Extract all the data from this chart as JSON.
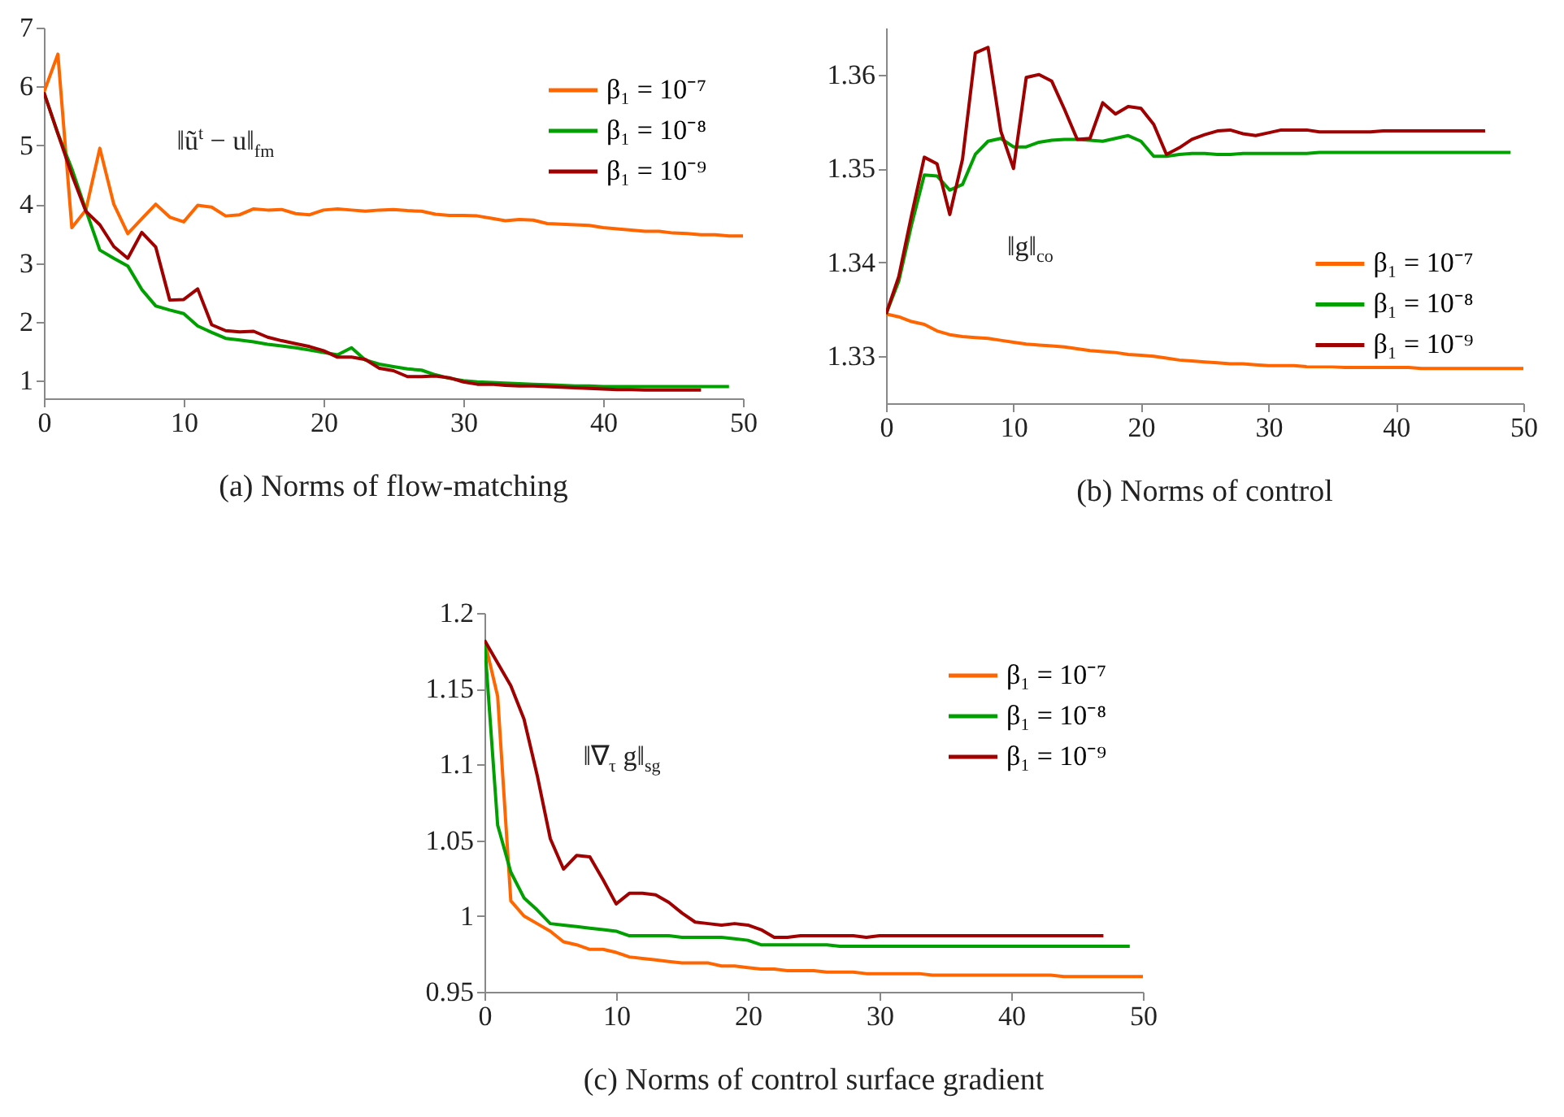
{
  "chart_data": [
    {
      "type": "line",
      "title": "(a) Norms of flow-matching",
      "annotations": [
        "‖ũ$^{t}$ − u‖$_{fm}$"
      ],
      "legend": "top right",
      "xlim": [
        0,
        50
      ],
      "xticks": [
        0,
        10,
        20,
        30,
        40,
        50
      ],
      "ylim": [
        0.7,
        7
      ],
      "yticks": [
        1,
        2,
        3,
        4,
        5,
        6,
        7
      ],
      "x": [
        0,
        1,
        2,
        3,
        4,
        5,
        6,
        7,
        8,
        9,
        10,
        11,
        12,
        13,
        14,
        15,
        16,
        17,
        18,
        19,
        20,
        21,
        22,
        23,
        24,
        25,
        26,
        27,
        28,
        29,
        30,
        31,
        32,
        33,
        34,
        35,
        36,
        37,
        38,
        39,
        40,
        41,
        42,
        43,
        44,
        45,
        46,
        47,
        48,
        49,
        50
      ],
      "series": [
        {
          "name": "β₁ = 10⁻⁷",
          "color": "#ff6600",
          "values": [
            5.9,
            6.55,
            3.6,
            3.9,
            4.95,
            4.0,
            3.5,
            3.75,
            4.0,
            3.78,
            3.7,
            3.98,
            3.95,
            3.8,
            3.82,
            3.92,
            3.9,
            3.91,
            3.84,
            3.82,
            3.9,
            3.92,
            3.9,
            3.88,
            3.9,
            3.91,
            3.89,
            3.88,
            3.83,
            3.81,
            3.81,
            3.8,
            3.76,
            3.72,
            3.74,
            3.73,
            3.67,
            3.66,
            3.65,
            3.64,
            3.6,
            3.58,
            3.56,
            3.54,
            3.54,
            3.51,
            3.5,
            3.48,
            3.48,
            3.46,
            3.46
          ]
        },
        {
          "name": "β₁ = 10⁻⁸",
          "color": "#00a000",
          "values": [
            5.9,
            5.2,
            4.6,
            3.9,
            3.22,
            3.08,
            2.95,
            2.55,
            2.27,
            2.2,
            2.14,
            1.93,
            1.82,
            1.72,
            1.69,
            1.66,
            1.62,
            1.59,
            1.56,
            1.52,
            1.48,
            1.44,
            1.56,
            1.35,
            1.28,
            1.24,
            1.2,
            1.18,
            1.1,
            1.04,
            1.0,
            0.98,
            0.97,
            0.96,
            0.95,
            0.94,
            0.93,
            0.92,
            0.91,
            0.91,
            0.9,
            0.9,
            0.9,
            0.9,
            0.9,
            0.9,
            0.9,
            0.9,
            0.9,
            0.9,
            null
          ]
        },
        {
          "name": "β₁ = 10⁻⁹",
          "color": "#a00000",
          "values": [
            5.9,
            5.2,
            4.5,
            3.88,
            3.65,
            3.28,
            3.08,
            3.52,
            3.27,
            2.37,
            2.38,
            2.56,
            1.95,
            1.85,
            1.83,
            1.84,
            1.74,
            1.68,
            1.63,
            1.58,
            1.51,
            1.4,
            1.4,
            1.36,
            1.21,
            1.17,
            1.07,
            1.07,
            1.08,
            1.05,
            0.98,
            0.94,
            0.94,
            0.92,
            0.91,
            0.91,
            0.9,
            0.89,
            0.88,
            0.87,
            0.86,
            0.85,
            0.85,
            0.84,
            0.84,
            0.84,
            0.84,
            0.84,
            null,
            null,
            null
          ]
        }
      ]
    },
    {
      "type": "line",
      "title": "(b) Norms of control",
      "annotations": [
        "‖g‖$_{co}$"
      ],
      "legend": "right",
      "xlim": [
        0,
        50
      ],
      "xticks": [
        0,
        10,
        20,
        30,
        40,
        50
      ],
      "ylim": [
        1.325,
        1.365
      ],
      "yticks": [
        1.33,
        1.34,
        1.35,
        1.36
      ],
      "x": [
        0,
        1,
        2,
        3,
        4,
        5,
        6,
        7,
        8,
        9,
        10,
        11,
        12,
        13,
        14,
        15,
        16,
        17,
        18,
        19,
        20,
        21,
        22,
        23,
        24,
        25,
        26,
        27,
        28,
        29,
        30,
        31,
        32,
        33,
        34,
        35,
        36,
        37,
        38,
        39,
        40,
        41,
        42,
        43,
        44,
        45,
        46,
        47,
        48,
        49,
        50
      ],
      "series": [
        {
          "name": "β₁ = 10⁻⁷",
          "color": "#ff6600",
          "values": [
            1.3345,
            1.3342,
            1.3337,
            1.3334,
            1.3327,
            1.3323,
            1.3321,
            1.332,
            1.3319,
            1.3317,
            1.3315,
            1.3313,
            1.3312,
            1.3311,
            1.331,
            1.3308,
            1.3306,
            1.3305,
            1.3304,
            1.3302,
            1.3301,
            1.33,
            1.3298,
            1.3296,
            1.3295,
            1.3294,
            1.3293,
            1.3292,
            1.3292,
            1.3291,
            1.329,
            1.329,
            1.329,
            1.3289,
            1.3289,
            1.3289,
            1.3288,
            1.3288,
            1.3288,
            1.3288,
            1.3288,
            1.3288,
            1.3287,
            1.3287,
            1.3287,
            1.3287,
            1.3287,
            1.3287,
            1.3287,
            1.3287,
            1.3287
          ]
        },
        {
          "name": "β₁ = 10⁻⁸",
          "color": "#00a000",
          "values": [
            1.3345,
            1.338,
            1.344,
            1.3493,
            1.3492,
            1.3477,
            1.3483,
            1.3515,
            1.3529,
            1.3532,
            1.3523,
            1.3523,
            1.3528,
            1.353,
            1.3531,
            1.3531,
            1.353,
            1.3529,
            1.3532,
            1.3535,
            1.3529,
            1.3513,
            1.3513,
            1.3515,
            1.3516,
            1.3516,
            1.3515,
            1.3515,
            1.3516,
            1.3516,
            1.3516,
            1.3516,
            1.3516,
            1.3516,
            1.3517,
            1.3517,
            1.3517,
            1.3517,
            1.3517,
            1.3517,
            1.3517,
            1.3517,
            1.3517,
            1.3517,
            1.3517,
            1.3517,
            1.3517,
            1.3517,
            1.3517,
            1.3517,
            null
          ]
        },
        {
          "name": "β₁ = 10⁻⁹",
          "color": "#a00000",
          "values": [
            1.3345,
            1.3385,
            1.345,
            1.3512,
            1.3505,
            1.3451,
            1.351,
            1.3623,
            1.3629,
            1.354,
            1.35,
            1.3597,
            1.36,
            1.3593,
            1.3563,
            1.3531,
            1.3532,
            1.357,
            1.3558,
            1.3566,
            1.3564,
            1.3547,
            1.3515,
            1.3522,
            1.3531,
            1.3536,
            1.354,
            1.3541,
            1.3537,
            1.3535,
            1.3538,
            1.3541,
            1.3541,
            1.3541,
            1.3539,
            1.3539,
            1.3539,
            1.3539,
            1.3539,
            1.354,
            1.354,
            1.354,
            1.354,
            1.354,
            1.354,
            1.354,
            1.354,
            1.354,
            null,
            null,
            null
          ]
        }
      ]
    },
    {
      "type": "line",
      "title": "(c) Norms of control surface gradient",
      "annotations": [
        "‖∇$_{τ}$ g‖$_{sg}$"
      ],
      "legend": "top right",
      "xlim": [
        0,
        50
      ],
      "xticks": [
        0,
        10,
        20,
        30,
        40,
        50
      ],
      "ylim": [
        0.95,
        1.2
      ],
      "yticks": [
        0.95,
        1,
        1.05,
        1.1,
        1.15,
        1.2
      ],
      "x": [
        0,
        1,
        2,
        3,
        4,
        5,
        6,
        7,
        8,
        9,
        10,
        11,
        12,
        13,
        14,
        15,
        16,
        17,
        18,
        19,
        20,
        21,
        22,
        23,
        24,
        25,
        26,
        27,
        28,
        29,
        30,
        31,
        32,
        33,
        34,
        35,
        36,
        37,
        38,
        39,
        40,
        41,
        42,
        43,
        44,
        45,
        46,
        47,
        48,
        49,
        50
      ],
      "series": [
        {
          "name": "β₁ = 10⁻⁷",
          "color": "#ff6600",
          "values": [
            1.182,
            1.145,
            1.01,
            1.0,
            0.995,
            0.99,
            0.983,
            0.981,
            0.978,
            0.978,
            0.976,
            0.973,
            0.972,
            0.971,
            0.97,
            0.969,
            0.969,
            0.969,
            0.967,
            0.967,
            0.966,
            0.965,
            0.965,
            0.964,
            0.964,
            0.964,
            0.963,
            0.963,
            0.963,
            0.962,
            0.962,
            0.962,
            0.962,
            0.962,
            0.961,
            0.961,
            0.961,
            0.961,
            0.961,
            0.961,
            0.961,
            0.961,
            0.961,
            0.961,
            0.96,
            0.96,
            0.96,
            0.96,
            0.96,
            0.96,
            0.96
          ]
        },
        {
          "name": "β₁ = 10⁻⁸",
          "color": "#00a000",
          "values": [
            1.182,
            1.06,
            1.029,
            1.012,
            1.004,
            0.995,
            0.994,
            0.993,
            0.992,
            0.991,
            0.99,
            0.987,
            0.987,
            0.987,
            0.987,
            0.986,
            0.986,
            0.986,
            0.986,
            0.985,
            0.984,
            0.981,
            0.981,
            0.981,
            0.981,
            0.981,
            0.981,
            0.98,
            0.98,
            0.98,
            0.98,
            0.98,
            0.98,
            0.98,
            0.98,
            0.98,
            0.98,
            0.98,
            0.98,
            0.98,
            0.98,
            0.98,
            0.98,
            0.98,
            0.98,
            0.98,
            0.98,
            0.98,
            0.98,
            0.98,
            null
          ]
        },
        {
          "name": "β₁ = 10⁻⁹",
          "color": "#a00000",
          "values": [
            1.182,
            1.167,
            1.152,
            1.13,
            1.093,
            1.051,
            1.031,
            1.04,
            1.039,
            1.024,
            1.008,
            1.015,
            1.015,
            1.014,
            1.009,
            1.002,
            0.996,
            0.995,
            0.994,
            0.995,
            0.994,
            0.991,
            0.986,
            0.986,
            0.987,
            0.987,
            0.987,
            0.987,
            0.987,
            0.986,
            0.987,
            0.987,
            0.987,
            0.987,
            0.987,
            0.987,
            0.987,
            0.987,
            0.987,
            0.987,
            0.987,
            0.987,
            0.987,
            0.987,
            0.987,
            0.987,
            0.987,
            0.987,
            null,
            null,
            null
          ]
        }
      ]
    }
  ]
}
